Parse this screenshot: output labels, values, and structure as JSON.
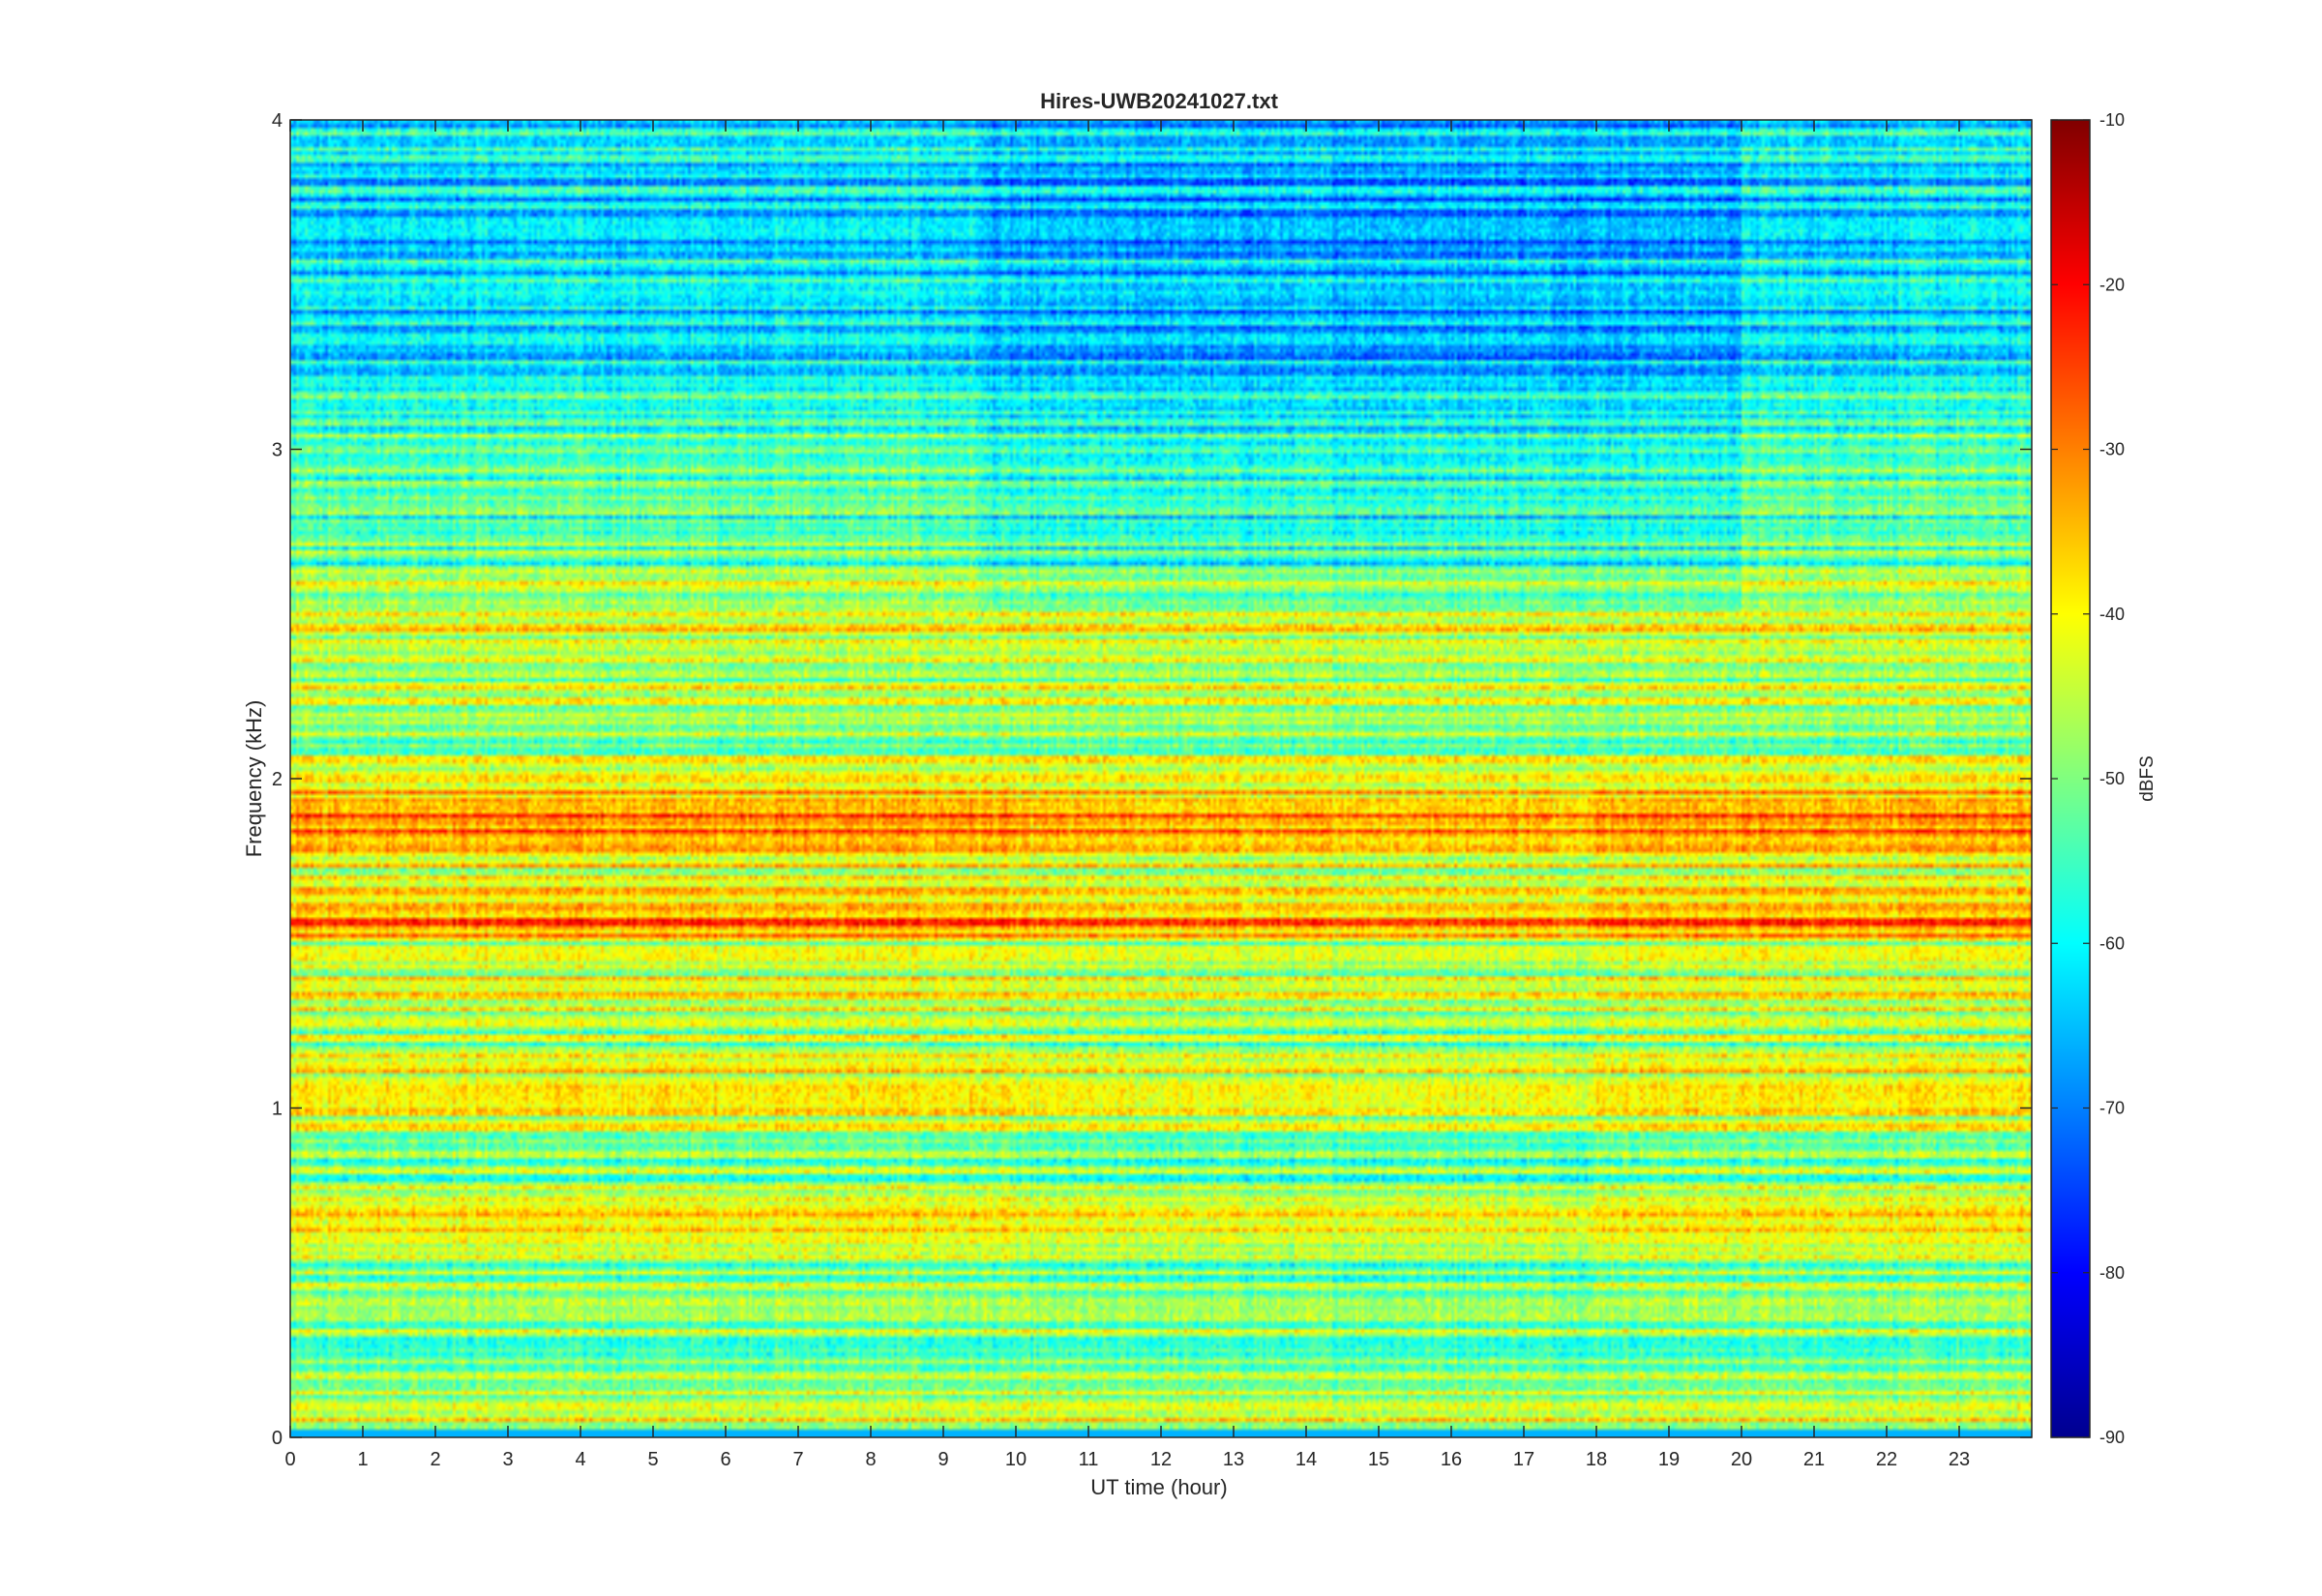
{
  "chart_data": {
    "type": "heatmap",
    "title": "Hires-UWB20241027.txt",
    "xlabel": "UT time (hour)",
    "ylabel": "Frequency (kHz)",
    "colorbar_label": "dBFS",
    "xlim": [
      0,
      24
    ],
    "ylim": [
      0,
      4
    ],
    "clim": [
      -90,
      -10
    ],
    "colormap": "jet",
    "x_ticks": [
      0,
      1,
      2,
      3,
      4,
      5,
      6,
      7,
      8,
      9,
      10,
      11,
      12,
      13,
      14,
      15,
      16,
      17,
      18,
      19,
      20,
      21,
      22,
      23
    ],
    "x_tick_labels": [
      "0",
      "1",
      "2",
      "3",
      "4",
      "5",
      "6",
      "7",
      "8",
      "9",
      "10",
      "11",
      "12",
      "13",
      "14",
      "15",
      "16",
      "17",
      "18",
      "19",
      "20",
      "21",
      "22",
      "23"
    ],
    "y_ticks": [
      0,
      1,
      2,
      3,
      4
    ],
    "y_tick_labels": [
      "0",
      "1",
      "2",
      "3",
      "4"
    ],
    "colorbar_ticks": [
      -90,
      -80,
      -70,
      -60,
      -50,
      -40,
      -30,
      -20,
      -10
    ],
    "colorbar_tick_labels": [
      "-90",
      "-80",
      "-70",
      "-60",
      "-50",
      "-40",
      "-30",
      "-20",
      "-10"
    ],
    "band_profile": {
      "frequency_khz": [
        0.05,
        0.25,
        0.35,
        0.5,
        0.65,
        0.8,
        0.95,
        1.05,
        1.2,
        1.35,
        1.5,
        1.55,
        1.65,
        1.75,
        1.85,
        1.95,
        2.1,
        2.3,
        2.45,
        2.7,
        3.0,
        3.3,
        3.6,
        3.9
      ],
      "level_dbfs": [
        -40,
        -58,
        -45,
        -52,
        -36,
        -50,
        -44,
        -38,
        -47,
        -44,
        -42,
        -30,
        -38,
        -40,
        -30,
        -36,
        -47,
        -46,
        -42,
        -52,
        -54,
        -60,
        -62,
        -62
      ]
    }
  }
}
